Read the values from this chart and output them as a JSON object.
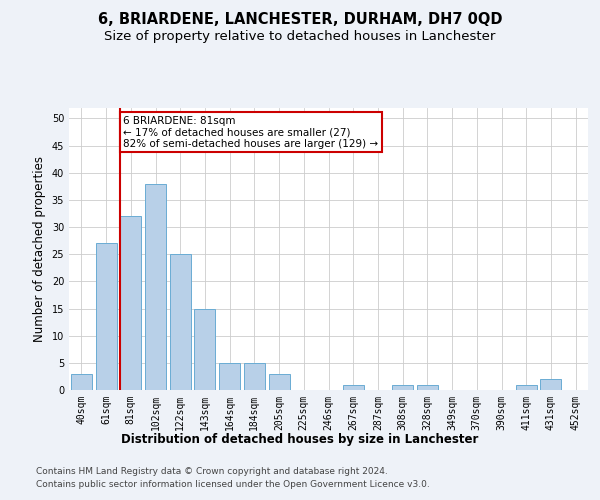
{
  "title": "6, BRIARDENE, LANCHESTER, DURHAM, DH7 0QD",
  "subtitle": "Size of property relative to detached houses in Lanchester",
  "xlabel_bottom": "Distribution of detached houses by size in Lanchester",
  "ylabel": "Number of detached properties",
  "categories": [
    "40sqm",
    "61sqm",
    "81sqm",
    "102sqm",
    "122sqm",
    "143sqm",
    "164sqm",
    "184sqm",
    "205sqm",
    "225sqm",
    "246sqm",
    "267sqm",
    "287sqm",
    "308sqm",
    "328sqm",
    "349sqm",
    "370sqm",
    "390sqm",
    "411sqm",
    "431sqm",
    "452sqm"
  ],
  "values": [
    3,
    27,
    32,
    38,
    25,
    15,
    5,
    5,
    3,
    0,
    0,
    1,
    0,
    1,
    1,
    0,
    0,
    0,
    1,
    2,
    0
  ],
  "bar_color": "#b8d0e8",
  "bar_edge_color": "#6aacd4",
  "highlight_line_index": 2,
  "annotation_text": "6 BRIARDENE: 81sqm\n← 17% of detached houses are smaller (27)\n82% of semi-detached houses are larger (129) →",
  "annotation_box_color": "#ffffff",
  "annotation_box_edge_color": "#cc0000",
  "red_line_color": "#cc0000",
  "ylim": [
    0,
    52
  ],
  "yticks": [
    0,
    5,
    10,
    15,
    20,
    25,
    30,
    35,
    40,
    45,
    50
  ],
  "footer_line1": "Contains HM Land Registry data © Crown copyright and database right 2024.",
  "footer_line2": "Contains public sector information licensed under the Open Government Licence v3.0.",
  "background_color": "#eef2f8",
  "plot_background_color": "#ffffff",
  "grid_color": "#cccccc",
  "title_fontsize": 10.5,
  "subtitle_fontsize": 9.5,
  "ylabel_fontsize": 8.5,
  "xlabel_fontsize": 8.5,
  "tick_fontsize": 7,
  "annotation_fontsize": 7.5,
  "footer_fontsize": 6.5
}
